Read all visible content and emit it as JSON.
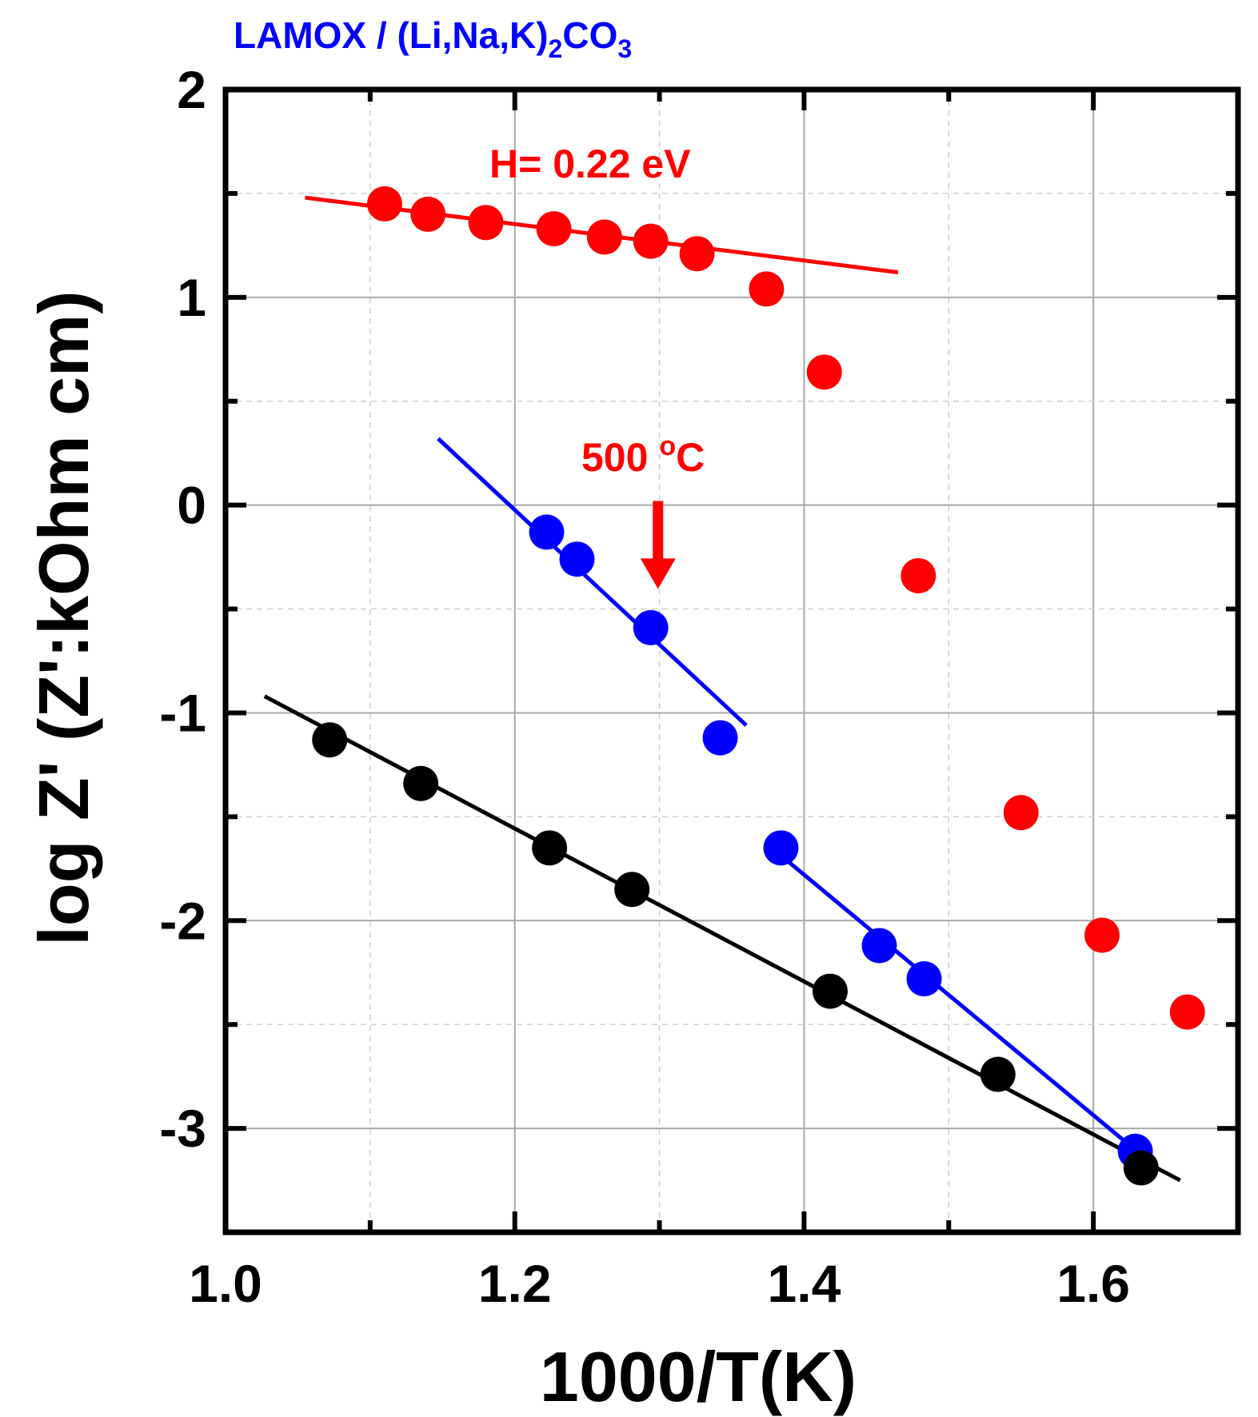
{
  "chart_data": {
    "type": "scatter",
    "title": {
      "main": "LAMOX / (Li,Na,K)",
      "sub1": "2",
      "mid": "CO",
      "sub2": "3"
    },
    "xlabel": "1000/T(K)",
    "ylabel": "log Z' (Z':kOhm cm)",
    "xlim": [
      1.0,
      1.7
    ],
    "ylim": [
      -3.5,
      2.0
    ],
    "xticks": [
      1.0,
      1.2,
      1.4,
      1.6
    ],
    "xtick_labels": [
      "1.0",
      "1.2",
      "1.4",
      "1.6"
    ],
    "yticks": [
      -3,
      -2,
      -1,
      0,
      1,
      2
    ],
    "ytick_labels": [
      "-3",
      "-2",
      "-1",
      "0",
      "1",
      "2"
    ],
    "grid": true,
    "series": [
      {
        "name": "red",
        "color": "#ff0000",
        "points": [
          [
            1.11,
            1.45
          ],
          [
            1.14,
            1.4
          ],
          [
            1.18,
            1.36
          ],
          [
            1.227,
            1.33
          ],
          [
            1.262,
            1.29
          ],
          [
            1.294,
            1.27
          ],
          [
            1.326,
            1.21
          ],
          [
            1.374,
            1.04
          ],
          [
            1.414,
            0.64
          ],
          [
            1.479,
            -0.34
          ],
          [
            1.55,
            -1.48
          ],
          [
            1.606,
            -2.07
          ],
          [
            1.665,
            -2.44
          ]
        ],
        "fits": [
          {
            "x": [
              1.055,
              1.465
            ],
            "y": [
              1.48,
              1.12
            ]
          }
        ]
      },
      {
        "name": "blue",
        "color": "#0000ff",
        "points": [
          [
            1.222,
            -0.13
          ],
          [
            1.243,
            -0.26
          ],
          [
            1.294,
            -0.59
          ],
          [
            1.342,
            -1.12
          ],
          [
            1.384,
            -1.65
          ],
          [
            1.452,
            -2.12
          ],
          [
            1.483,
            -2.28
          ],
          [
            1.629,
            -3.11
          ]
        ],
        "fits": [
          {
            "x": [
              1.147,
              1.36
            ],
            "y": [
              0.32,
              -1.06
            ]
          },
          {
            "x": [
              1.376,
              1.63
            ],
            "y": [
              -1.64,
              -3.11
            ]
          }
        ]
      },
      {
        "name": "black",
        "color": "#000000",
        "points": [
          [
            1.072,
            -1.13
          ],
          [
            1.135,
            -1.34
          ],
          [
            1.224,
            -1.65
          ],
          [
            1.281,
            -1.85
          ],
          [
            1.418,
            -2.34
          ],
          [
            1.534,
            -2.74
          ],
          [
            1.633,
            -3.19
          ]
        ],
        "fits": [
          {
            "x": [
              1.027,
              1.66
            ],
            "y": [
              -0.92,
              -3.25
            ]
          }
        ]
      }
    ],
    "annotations": [
      {
        "text": "H= 0.22 eV",
        "color": "#ff0000"
      },
      {
        "text_main": "500 ",
        "text_sup": "o",
        "text_unit": "C",
        "color": "#ff0000",
        "arrow_x": 1.299,
        "arrow_from_y": 0.02,
        "arrow_to_y": -0.38
      }
    ]
  }
}
